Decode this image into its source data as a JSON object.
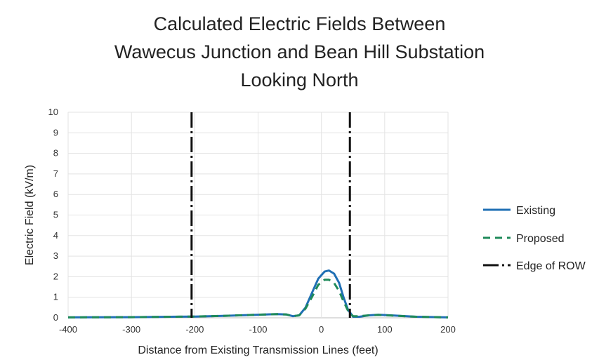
{
  "chart_data": {
    "type": "line",
    "title_lines": [
      "Calculated Electric Fields Between",
      "Wawecus Junction and Bean Hill Substation",
      "Looking North"
    ],
    "xlabel": "Distance from Existing Transmission Lines (feet)",
    "ylabel": "Electric Field (kV/m)",
    "xlim": [
      -400,
      200
    ],
    "ylim": [
      0,
      10
    ],
    "x_ticks": [
      "-400",
      "-300",
      "-200",
      "-100",
      "0",
      "100",
      "200"
    ],
    "y_ticks": [
      "0",
      "1",
      "2",
      "3",
      "4",
      "5",
      "6",
      "7",
      "8",
      "9",
      "10"
    ],
    "grid": true,
    "legend_position": "right",
    "series": [
      {
        "name": "Existing",
        "color": "#1f6fb4",
        "style": "solid",
        "x": [
          -400,
          -300,
          -200,
          -150,
          -100,
          -70,
          -55,
          -45,
          -35,
          -25,
          -15,
          -5,
          5,
          12,
          20,
          28,
          35,
          42,
          50,
          60,
          75,
          90,
          110,
          150,
          200
        ],
        "y": [
          0.02,
          0.03,
          0.06,
          0.1,
          0.15,
          0.18,
          0.16,
          0.08,
          0.12,
          0.5,
          1.2,
          1.9,
          2.25,
          2.3,
          2.15,
          1.7,
          1.0,
          0.4,
          0.05,
          0.05,
          0.12,
          0.15,
          0.12,
          0.05,
          0.02
        ]
      },
      {
        "name": "Proposed",
        "color": "#1f8a5a",
        "style": "dashed",
        "x": [
          -400,
          -300,
          -200,
          -150,
          -100,
          -70,
          -55,
          -45,
          -35,
          -25,
          -15,
          -5,
          5,
          12,
          20,
          28,
          35,
          42,
          50,
          60,
          75,
          90,
          110,
          150,
          200
        ],
        "y": [
          0.02,
          0.03,
          0.06,
          0.1,
          0.15,
          0.18,
          0.16,
          0.08,
          0.12,
          0.45,
          1.0,
          1.6,
          1.85,
          1.85,
          1.7,
          1.3,
          0.8,
          0.35,
          0.08,
          0.08,
          0.12,
          0.14,
          0.11,
          0.05,
          0.02
        ]
      }
    ],
    "reference_lines": {
      "name": "Edge of ROW",
      "color": "#111111",
      "style": "dash-dot",
      "x": [
        -205,
        45
      ]
    }
  }
}
